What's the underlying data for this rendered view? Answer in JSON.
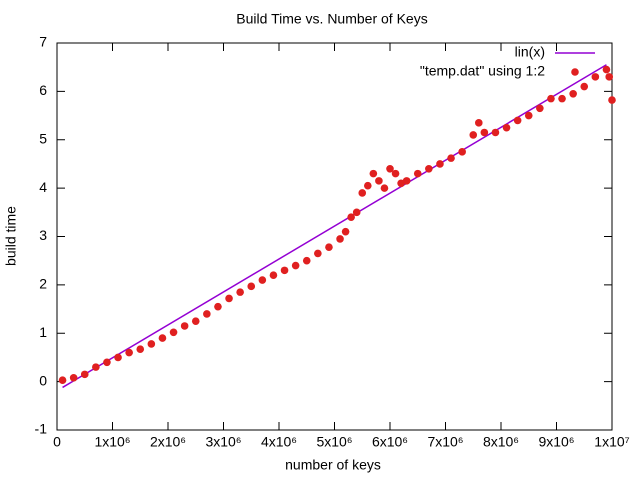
{
  "chart_data": {
    "type": "scatter",
    "title": "Build Time vs. Number of Keys",
    "x_label": "number of keys",
    "y_label": "build time",
    "xlim": [
      0,
      10000000
    ],
    "ylim": [
      -1,
      7
    ],
    "xticks": [
      0,
      {
        "value": 1000000,
        "label": "1x10⁶"
      },
      {
        "value": 2000000,
        "label": "2x10⁶"
      },
      {
        "value": 3000000,
        "label": "3x10⁶"
      },
      {
        "value": 4000000,
        "label": "4x10⁶"
      },
      {
        "value": 5000000,
        "label": "5x10⁶"
      },
      {
        "value": 6000000,
        "label": "6x10⁶"
      },
      {
        "value": 7000000,
        "label": "7x10⁶"
      },
      {
        "value": 8000000,
        "label": "8x10⁶"
      },
      {
        "value": 9000000,
        "label": "9x10⁶"
      },
      {
        "value": 10000000,
        "label": "1x10⁷"
      }
    ],
    "yticks": [
      -1,
      0,
      1,
      2,
      3,
      4,
      5,
      6,
      7
    ],
    "legend": "top-right",
    "series": [
      {
        "name": "lin(x)",
        "style": "line",
        "color": "#9400d3",
        "x": [
          100000,
          9900000
        ],
        "values": [
          -0.12,
          6.55
        ]
      },
      {
        "name": "\"temp.dat\" using 1:2",
        "style": "points",
        "color": "#e02020",
        "x": [
          100000,
          300000,
          500000,
          700000,
          900000,
          1100000,
          1300000,
          1500000,
          1700000,
          1900000,
          2100000,
          2300000,
          2500000,
          2700000,
          2900000,
          3100000,
          3300000,
          3500000,
          3700000,
          3900000,
          4100000,
          4300000,
          4500000,
          4700000,
          4900000,
          5100000,
          5200000,
          5300000,
          5400000,
          5500000,
          5600000,
          5700000,
          5800000,
          5900000,
          6000000,
          6100000,
          6200000,
          6300000,
          6500000,
          6700000,
          6900000,
          7100000,
          7300000,
          7500000,
          7600000,
          7700000,
          7900000,
          8100000,
          8300000,
          8500000,
          8700000,
          8900000,
          9100000,
          9300000,
          9500000,
          9700000,
          9900000,
          9950000,
          10000000
        ],
        "values": [
          0.03,
          0.08,
          0.15,
          0.3,
          0.4,
          0.5,
          0.6,
          0.67,
          0.78,
          0.9,
          1.02,
          1.15,
          1.25,
          1.4,
          1.55,
          1.72,
          1.85,
          1.97,
          2.1,
          2.2,
          2.3,
          2.4,
          2.5,
          2.65,
          2.78,
          2.95,
          3.1,
          3.4,
          3.5,
          3.9,
          4.05,
          4.3,
          4.15,
          4.0,
          4.4,
          4.3,
          4.1,
          4.15,
          4.3,
          4.4,
          4.5,
          4.62,
          4.75,
          5.1,
          5.35,
          5.15,
          5.15,
          5.25,
          5.4,
          5.5,
          5.65,
          5.85,
          5.85,
          5.95,
          6.1,
          6.3,
          6.45,
          6.3,
          5.82
        ]
      }
    ]
  }
}
